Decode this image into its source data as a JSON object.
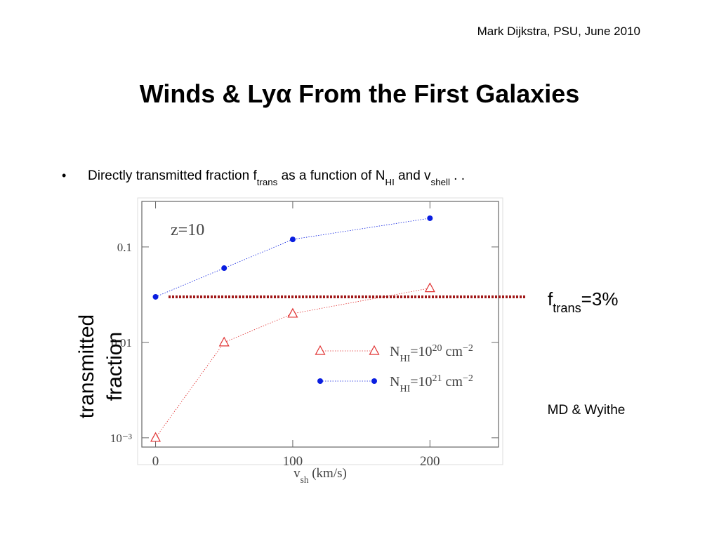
{
  "header": "Mark Dijkstra, PSU, June 2010",
  "title": [
    {
      "t": "Winds & Ly"
    },
    {
      "t": "α"
    },
    {
      "t": " From the First Galaxies"
    }
  ],
  "bullet": [
    {
      "t": "Directly transmitted fraction f"
    },
    {
      "t": "trans",
      "s": "sub"
    },
    {
      "t": " as a function of N"
    },
    {
      "t": "HI",
      "s": "sub"
    },
    {
      "t": " and v"
    },
    {
      "t": "shell",
      "s": "sub"
    },
    {
      "t": " . ."
    }
  ],
  "credit": "MD & Wyithe",
  "chart_data": {
    "type": "scatter",
    "annotation": "z=10",
    "xlabel": [
      {
        "t": "v"
      },
      {
        "t": "sh",
        "s": "sub"
      },
      {
        "t": " (km/s)"
      }
    ],
    "ylabel": [
      "transmitted",
      "fraction"
    ],
    "x": [
      0,
      50,
      100,
      200
    ],
    "xlim": [
      -10,
      250
    ],
    "xticks": [
      0,
      100,
      200
    ],
    "ylim": [
      0.0008,
      0.3
    ],
    "yticks": [
      {
        "value": 0.001,
        "label": "10⁻³"
      },
      0.01,
      0.1
    ],
    "log_y": true,
    "series": [
      {
        "label_parts": [
          {
            "t": "N"
          },
          {
            "t": "HI",
            "s": "sub"
          },
          {
            "t": "=10"
          },
          {
            "t": "20",
            "s": "sup"
          },
          {
            "t": " cm"
          },
          {
            "t": "−2",
            "s": "sup"
          }
        ],
        "color": "#e03030",
        "marker": "triangle",
        "values": [
          0.001,
          0.01,
          0.02,
          0.037
        ]
      },
      {
        "label_parts": [
          {
            "t": "N"
          },
          {
            "t": "HI",
            "s": "sub"
          },
          {
            "t": "=10"
          },
          {
            "t": "21",
            "s": "sup"
          },
          {
            "t": " cm"
          },
          {
            "t": "−2",
            "s": "sup"
          }
        ],
        "color": "#0a1ee0",
        "marker": "circle",
        "values": [
          0.03,
          0.06,
          0.12,
          0.2
        ]
      }
    ],
    "reference_line": {
      "value": 0.03,
      "color": "#a01818",
      "label": [
        {
          "t": "f"
        },
        {
          "t": "trans",
          "s": "sub"
        },
        {
          "t": "=3%"
        }
      ]
    }
  }
}
